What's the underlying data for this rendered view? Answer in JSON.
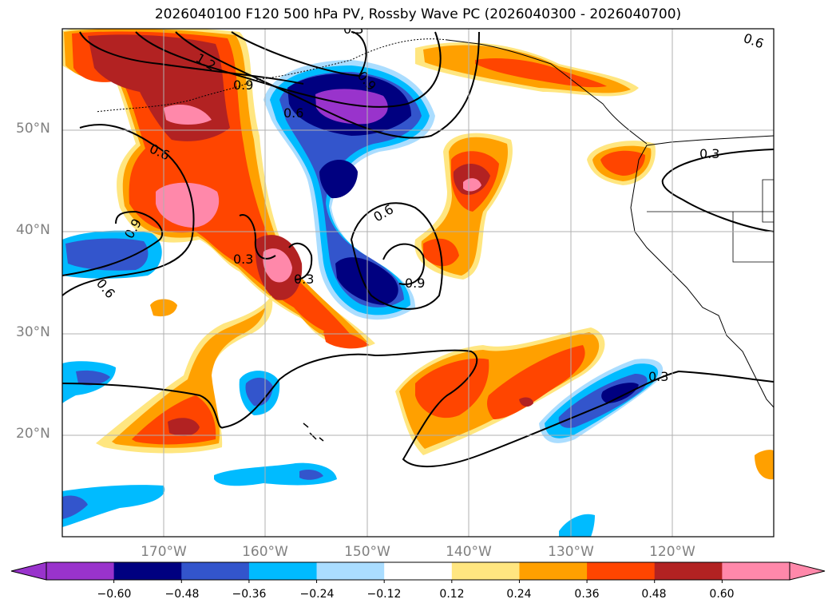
{
  "title": "2026040100 F120 500 hPa PV, Rossby Wave PC (2026040300 - 2026040700)",
  "lat_labels": [
    "50°N",
    "40°N",
    "30°N",
    "20°N"
  ],
  "lon_labels": [
    "170°W",
    "160°W",
    "150°W",
    "140°W",
    "130°W",
    "120°W"
  ],
  "contour_labels": [
    "1.2",
    "0.9",
    "0.6",
    "0.6",
    "0.9",
    "0.3",
    "0.3",
    "0.6",
    "0.9",
    "0.3",
    "0.6",
    "0.3",
    "0.3",
    "0.6",
    "0.9"
  ],
  "colorbar": {
    "ticks": [
      "−0.60",
      "−0.48",
      "−0.36",
      "−0.24",
      "−0.12",
      "0.12",
      "0.24",
      "0.36",
      "0.48",
      "0.60"
    ],
    "colors": [
      "#9933cc",
      "#000080",
      "#3355cc",
      "#00bbff",
      "#aaddff",
      "#ffffff",
      "#ffe680",
      "#ffa000",
      "#ff4500",
      "#b22222",
      "#ff88aa",
      "#ff88aa"
    ]
  },
  "palette": {
    "ocean": "#ffffff",
    "grid": "#b0b0b0",
    "coast": "#000000"
  }
}
